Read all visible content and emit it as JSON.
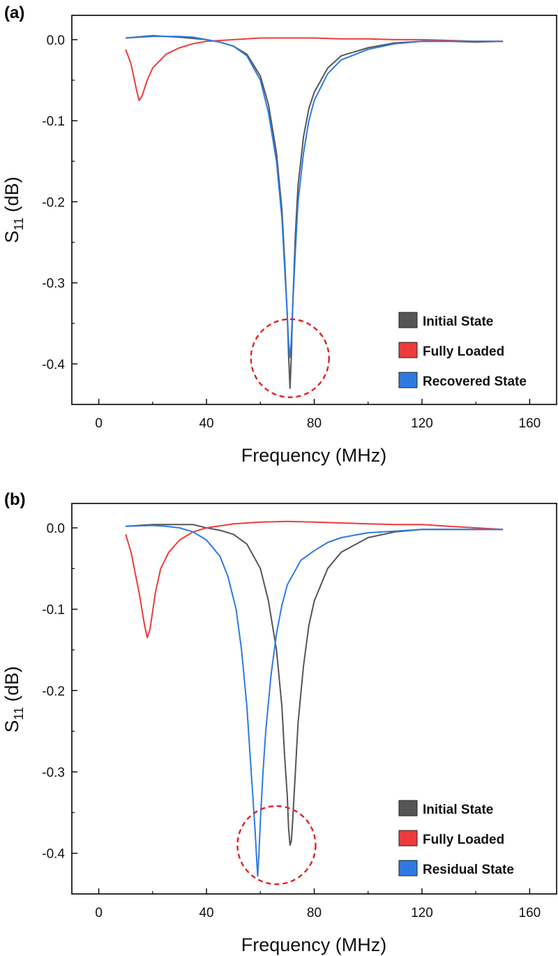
{
  "chart_data": [
    {
      "panel_label": "(a)",
      "type": "line",
      "xlabel": "Frequency (MHz)",
      "ylabel_main": "S",
      "ylabel_sub": "11",
      "ylabel_unit": " (dB)",
      "xlim": [
        -10,
        170
      ],
      "ylim": [
        -0.45,
        0.03
      ],
      "xticks": [
        0,
        40,
        80,
        120,
        160
      ],
      "yticks": [
        0.0,
        -0.1,
        -0.2,
        -0.3,
        -0.4
      ],
      "xtick_labels": [
        "0",
        "40",
        "80",
        "120",
        "160"
      ],
      "ytick_labels": [
        "0.0",
        "-0.1",
        "-0.2",
        "-0.3",
        "-0.4"
      ],
      "grid": false,
      "legend_position": "bottom-right",
      "annotation": {
        "shape": "dashed circle",
        "center": [
          71,
          -0.393
        ],
        "color": "#e02020"
      },
      "series": [
        {
          "name": "Initial State",
          "color": "#555555",
          "x": [
            10,
            20,
            30,
            40,
            45,
            50,
            55,
            60,
            63,
            66,
            68,
            69,
            70,
            70.5,
            71,
            71.5,
            72,
            73,
            74,
            76,
            78,
            80,
            85,
            90,
            100,
            110,
            120,
            130,
            140,
            150
          ],
          "y": [
            0.002,
            0.005,
            0.003,
            0.0,
            -0.003,
            -0.008,
            -0.018,
            -0.045,
            -0.08,
            -0.14,
            -0.21,
            -0.27,
            -0.34,
            -0.39,
            -0.43,
            -0.39,
            -0.33,
            -0.24,
            -0.18,
            -0.12,
            -0.085,
            -0.065,
            -0.035,
            -0.02,
            -0.01,
            -0.004,
            -0.002,
            -0.002,
            -0.003,
            -0.002
          ]
        },
        {
          "name": "Fully Loaded",
          "color": "#ee3b3b",
          "x": [
            10,
            12,
            14,
            15,
            16,
            18,
            20,
            25,
            30,
            35,
            40,
            50,
            60,
            70,
            80,
            90,
            100,
            110,
            120,
            130,
            140,
            150
          ],
          "y": [
            -0.012,
            -0.03,
            -0.062,
            -0.075,
            -0.07,
            -0.05,
            -0.035,
            -0.018,
            -0.01,
            -0.005,
            -0.002,
            0.0,
            0.002,
            0.002,
            0.002,
            0.001,
            0.001,
            0.0,
            0.0,
            -0.001,
            -0.002,
            -0.002
          ]
        },
        {
          "name": "Recovered State",
          "color": "#2e7ae0",
          "x": [
            10,
            20,
            30,
            35,
            40,
            45,
            50,
            55,
            60,
            63,
            66,
            68,
            69,
            70,
            70.5,
            71,
            71.5,
            72,
            73,
            74,
            76,
            78,
            80,
            85,
            90,
            100,
            110,
            120,
            130,
            140,
            150
          ],
          "y": [
            0.002,
            0.004,
            0.004,
            0.003,
            0.0,
            -0.003,
            -0.008,
            -0.02,
            -0.05,
            -0.09,
            -0.15,
            -0.22,
            -0.28,
            -0.34,
            -0.375,
            -0.392,
            -0.37,
            -0.33,
            -0.26,
            -0.2,
            -0.14,
            -0.1,
            -0.075,
            -0.042,
            -0.025,
            -0.012,
            -0.005,
            -0.002,
            -0.002,
            -0.002,
            -0.002
          ]
        }
      ]
    },
    {
      "panel_label": "(b)",
      "type": "line",
      "xlabel": "Frequency (MHz)",
      "ylabel_main": "S",
      "ylabel_sub": "11",
      "ylabel_unit": " (dB)",
      "xlim": [
        -10,
        170
      ],
      "ylim": [
        -0.45,
        0.03
      ],
      "xticks": [
        0,
        40,
        80,
        120,
        160
      ],
      "yticks": [
        0.0,
        -0.1,
        -0.2,
        -0.3,
        -0.4
      ],
      "xtick_labels": [
        "0",
        "40",
        "80",
        "120",
        "160"
      ],
      "ytick_labels": [
        "0.0",
        "-0.1",
        "-0.2",
        "-0.3",
        "-0.4"
      ],
      "grid": false,
      "legend_position": "bottom-right",
      "annotation": {
        "shape": "dashed circle",
        "center": [
          66,
          -0.39
        ],
        "color": "#e02020"
      },
      "series": [
        {
          "name": "Initial State",
          "color": "#555555",
          "x": [
            10,
            20,
            30,
            35,
            40,
            45,
            50,
            55,
            60,
            63,
            66,
            68,
            69,
            70,
            70.5,
            71,
            71.5,
            72,
            73,
            74,
            76,
            78,
            80,
            85,
            90,
            100,
            110,
            120,
            130,
            140,
            150
          ],
          "y": [
            0.002,
            0.004,
            0.004,
            0.004,
            0.0,
            -0.003,
            -0.008,
            -0.02,
            -0.05,
            -0.09,
            -0.15,
            -0.22,
            -0.28,
            -0.33,
            -0.37,
            -0.39,
            -0.385,
            -0.36,
            -0.3,
            -0.24,
            -0.17,
            -0.12,
            -0.09,
            -0.05,
            -0.03,
            -0.012,
            -0.005,
            -0.002,
            -0.002,
            -0.002,
            -0.002
          ]
        },
        {
          "name": "Fully Loaded",
          "color": "#ee3b3b",
          "x": [
            10,
            12,
            15,
            17,
            18,
            19,
            21,
            23,
            26,
            30,
            35,
            40,
            50,
            60,
            70,
            80,
            90,
            100,
            110,
            120,
            130,
            140,
            150
          ],
          "y": [
            -0.008,
            -0.03,
            -0.08,
            -0.12,
            -0.135,
            -0.125,
            -0.08,
            -0.05,
            -0.03,
            -0.015,
            -0.005,
            0.0,
            0.005,
            0.007,
            0.008,
            0.007,
            0.006,
            0.005,
            0.004,
            0.004,
            0.002,
            0.0,
            -0.002
          ]
        },
        {
          "name": "Residual State",
          "color": "#2e7ae0",
          "x": [
            10,
            20,
            25,
            30,
            35,
            40,
            45,
            48,
            51,
            53,
            55,
            56,
            57,
            58,
            58.5,
            59,
            59.5,
            60,
            61,
            62,
            64,
            66,
            68,
            70,
            75,
            80,
            85,
            90,
            100,
            110,
            120,
            130,
            140,
            150
          ],
          "y": [
            0.002,
            0.003,
            0.002,
            0.0,
            -0.005,
            -0.015,
            -0.035,
            -0.06,
            -0.1,
            -0.15,
            -0.22,
            -0.27,
            -0.32,
            -0.37,
            -0.4,
            -0.428,
            -0.4,
            -0.36,
            -0.3,
            -0.25,
            -0.18,
            -0.13,
            -0.095,
            -0.07,
            -0.04,
            -0.028,
            -0.018,
            -0.012,
            -0.006,
            -0.004,
            -0.002,
            -0.002,
            -0.002,
            -0.002
          ]
        }
      ]
    }
  ]
}
